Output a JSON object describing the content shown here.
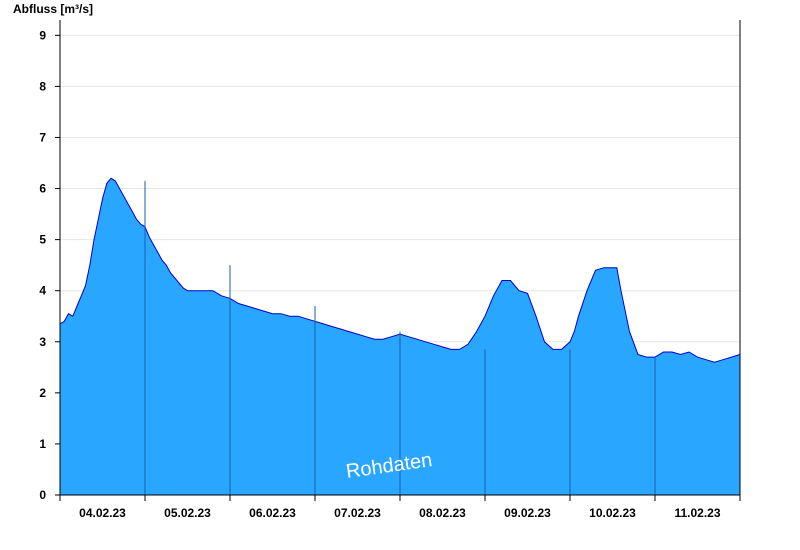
{
  "chart_data": {
    "type": "area",
    "ylabel": "Abfluss [m³/s]",
    "watermark": "Rohdaten",
    "ylim": [
      0,
      9.3
    ],
    "yticks": [
      "0",
      "1",
      "2",
      "3",
      "4",
      "5",
      "6",
      "7",
      "8",
      "9"
    ],
    "xlim": [
      0,
      8
    ],
    "day_labels": [
      "04.02.23",
      "05.02.23",
      "06.02.23",
      "07.02.23",
      "08.02.23",
      "09.02.23",
      "10.02.23",
      "11.02.23"
    ],
    "grid": true,
    "colors": {
      "fill": "#29a6ff",
      "line": "#0000cc",
      "grid": "#e6e6e6",
      "axis": "#000000"
    },
    "series": [
      {
        "x": [
          0.0,
          0.05,
          0.1,
          0.15,
          0.2,
          0.25,
          0.3,
          0.35,
          0.4,
          0.45,
          0.5,
          0.55,
          0.6,
          0.65,
          0.7,
          0.75,
          0.8,
          0.85,
          0.9,
          0.95,
          1.0,
          1.05,
          1.1,
          1.15,
          1.2,
          1.25,
          1.3,
          1.35,
          1.4,
          1.45,
          1.5,
          1.6,
          1.7,
          1.8,
          1.9,
          2.0,
          2.05,
          2.1,
          2.2,
          2.3,
          2.4,
          2.5,
          2.6,
          2.7,
          2.8,
          2.9,
          3.0,
          3.1,
          3.2,
          3.3,
          3.4,
          3.5,
          3.6,
          3.7,
          3.8,
          3.9,
          4.0,
          4.1,
          4.2,
          4.3,
          4.4,
          4.5,
          4.6,
          4.7,
          4.8,
          4.9,
          5.0,
          5.1,
          5.2,
          5.3,
          5.4,
          5.5,
          5.6,
          5.7,
          5.8,
          5.9,
          6.0,
          6.05,
          6.1,
          6.2,
          6.3,
          6.4,
          6.5,
          6.55,
          6.6,
          6.7,
          6.8,
          6.9,
          7.0,
          7.1,
          7.2,
          7.3,
          7.4,
          7.5,
          7.6,
          7.7,
          7.8,
          7.9,
          8.0
        ],
        "y": [
          3.35,
          3.4,
          3.55,
          3.5,
          3.7,
          3.9,
          4.1,
          4.5,
          5.0,
          5.4,
          5.8,
          6.1,
          6.2,
          6.15,
          6.0,
          5.85,
          5.7,
          5.55,
          5.4,
          5.3,
          5.25,
          5.05,
          4.9,
          4.75,
          4.6,
          4.5,
          4.35,
          4.25,
          4.15,
          4.05,
          4.0,
          4.0,
          4.0,
          4.0,
          3.9,
          3.85,
          3.8,
          3.75,
          3.7,
          3.65,
          3.6,
          3.55,
          3.55,
          3.5,
          3.5,
          3.45,
          3.4,
          3.35,
          3.3,
          3.25,
          3.2,
          3.15,
          3.1,
          3.05,
          3.05,
          3.1,
          3.15,
          3.1,
          3.05,
          3.0,
          2.95,
          2.9,
          2.85,
          2.85,
          2.95,
          3.2,
          3.5,
          3.9,
          4.2,
          4.2,
          4.0,
          3.95,
          3.5,
          3.0,
          2.85,
          2.85,
          3.0,
          3.2,
          3.5,
          4.0,
          4.4,
          4.45,
          4.45,
          4.45,
          4.0,
          3.2,
          2.75,
          2.7,
          2.7,
          2.8,
          2.8,
          2.75,
          2.8,
          2.7,
          2.65,
          2.6,
          2.65,
          2.7,
          2.75
        ]
      }
    ]
  }
}
